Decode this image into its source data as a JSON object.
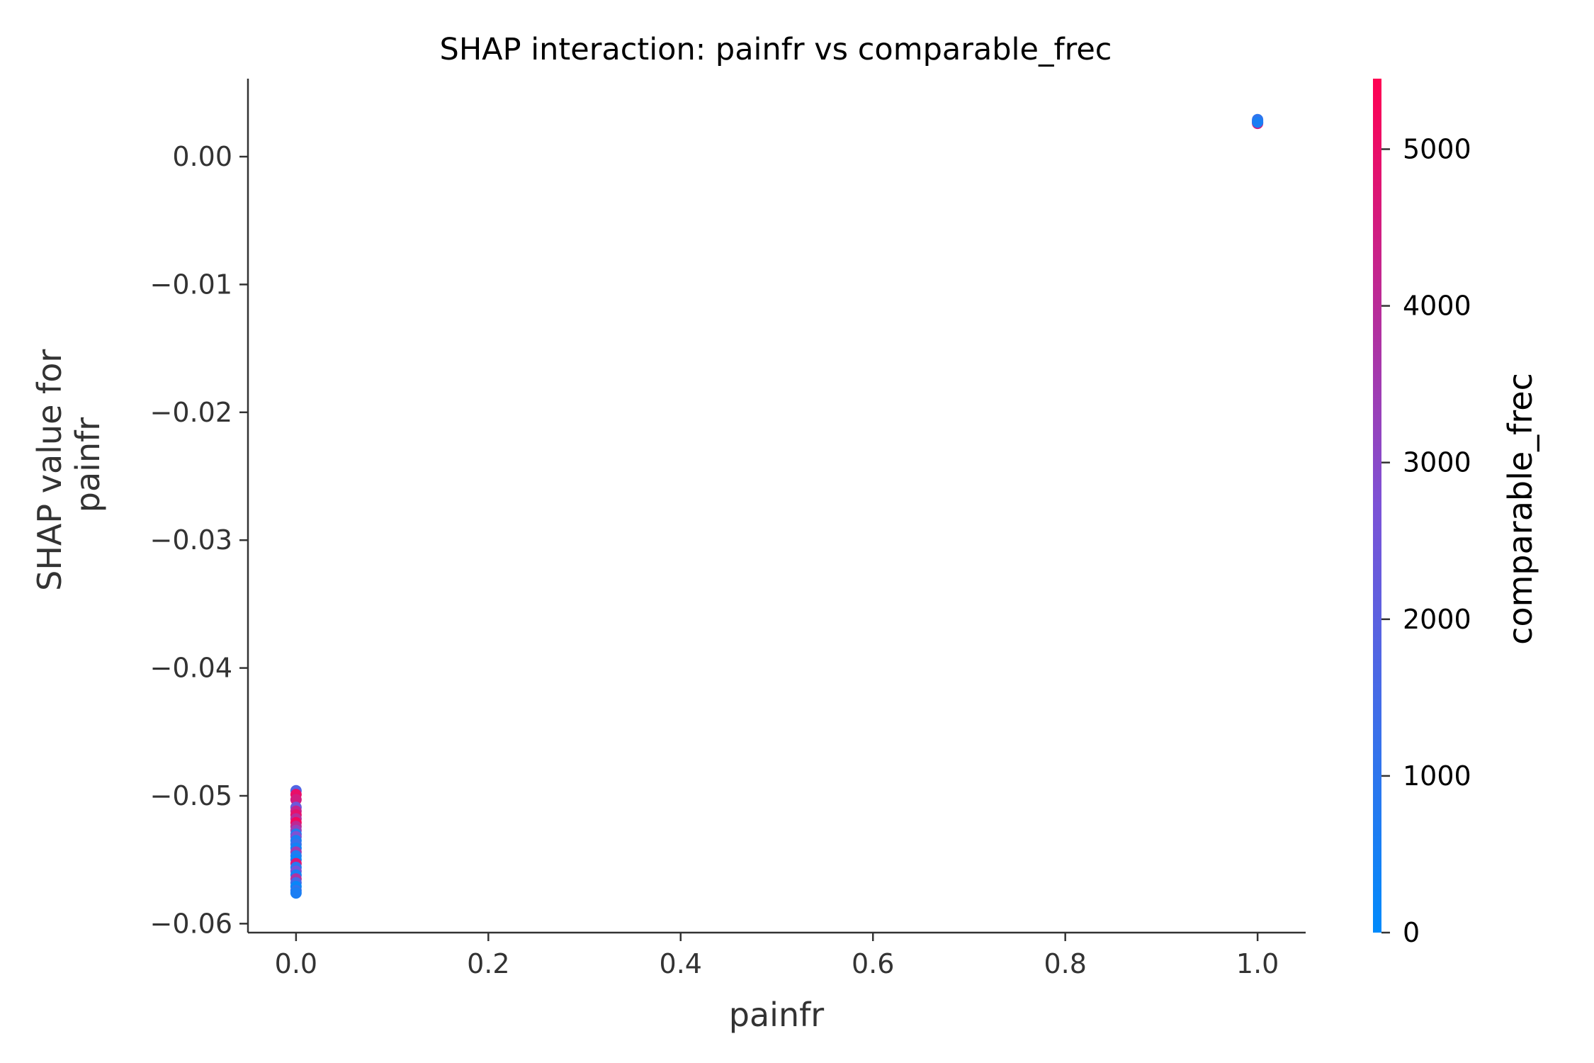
{
  "chart_data": {
    "type": "scatter",
    "title": "SHAP interaction: painfr vs comparable_frec",
    "xlabel": "painfr",
    "ylabel_lines": [
      "SHAP value for",
      "painfr"
    ],
    "xlim": [
      -0.05,
      1.05
    ],
    "ylim": [
      -0.0607,
      0.0061
    ],
    "xticks": [
      0.0,
      0.2,
      0.4,
      0.6,
      0.8,
      1.0
    ],
    "xtick_labels": [
      "0.0",
      "0.2",
      "0.4",
      "0.6",
      "0.8",
      "1.0"
    ],
    "yticks": [
      0.0,
      -0.01,
      -0.02,
      -0.03,
      -0.04,
      -0.05,
      -0.06
    ],
    "ytick_labels": [
      "0.00",
      "−0.01",
      "−0.02",
      "−0.03",
      "−0.04",
      "−0.05",
      "−0.06"
    ],
    "colorbar": {
      "label": "comparable_frec",
      "range": [
        0,
        5450
      ],
      "ticks": [
        0,
        1000,
        2000,
        3000,
        4000,
        5000
      ],
      "tick_labels": [
        "0",
        "1000",
        "2000",
        "3000",
        "4000",
        "5000"
      ],
      "low_color": "#008afb",
      "mid_color": "#7c52d6",
      "high_color": "#ff0052"
    },
    "points": [
      {
        "x": 1.0,
        "y": 0.0029,
        "c": 900
      },
      {
        "x": 1.0,
        "y": 0.0028,
        "c": 1200
      },
      {
        "x": 1.0,
        "y": 0.0027,
        "c": 2500
      },
      {
        "x": 1.0,
        "y": 0.0026,
        "c": 4600
      },
      {
        "x": 1.0,
        "y": 0.0027,
        "c": 600
      },
      {
        "x": 0.0,
        "y": -0.0496,
        "c": 1800
      },
      {
        "x": 0.0,
        "y": -0.0499,
        "c": 5000
      },
      {
        "x": 0.0,
        "y": -0.0503,
        "c": 4500
      },
      {
        "x": 0.0,
        "y": -0.0509,
        "c": 2400
      },
      {
        "x": 0.0,
        "y": -0.0512,
        "c": 4200
      },
      {
        "x": 0.0,
        "y": -0.0515,
        "c": 4900
      },
      {
        "x": 0.0,
        "y": -0.0518,
        "c": 3900
      },
      {
        "x": 0.0,
        "y": -0.0521,
        "c": 5200
      },
      {
        "x": 0.0,
        "y": -0.0524,
        "c": 4100
      },
      {
        "x": 0.0,
        "y": -0.0527,
        "c": 3300
      },
      {
        "x": 0.0,
        "y": -0.053,
        "c": 800
      },
      {
        "x": 0.0,
        "y": -0.0532,
        "c": 2800
      },
      {
        "x": 0.0,
        "y": -0.0535,
        "c": 600
      },
      {
        "x": 0.0,
        "y": -0.0538,
        "c": 1200
      },
      {
        "x": 0.0,
        "y": -0.0541,
        "c": 400
      },
      {
        "x": 0.0,
        "y": -0.0544,
        "c": 3500
      },
      {
        "x": 0.0,
        "y": -0.0547,
        "c": 700
      },
      {
        "x": 0.0,
        "y": -0.055,
        "c": 300
      },
      {
        "x": 0.0,
        "y": -0.0553,
        "c": 4700
      },
      {
        "x": 0.0,
        "y": -0.0556,
        "c": 900
      },
      {
        "x": 0.0,
        "y": -0.0559,
        "c": 2600
      },
      {
        "x": 0.0,
        "y": -0.0562,
        "c": 500
      },
      {
        "x": 0.0,
        "y": -0.0565,
        "c": 3800
      },
      {
        "x": 0.0,
        "y": -0.0568,
        "c": 1500
      },
      {
        "x": 0.0,
        "y": -0.0571,
        "c": 200
      },
      {
        "x": 0.0,
        "y": -0.0574,
        "c": 1000
      },
      {
        "x": 0.0,
        "y": -0.0576,
        "c": 600
      }
    ]
  }
}
